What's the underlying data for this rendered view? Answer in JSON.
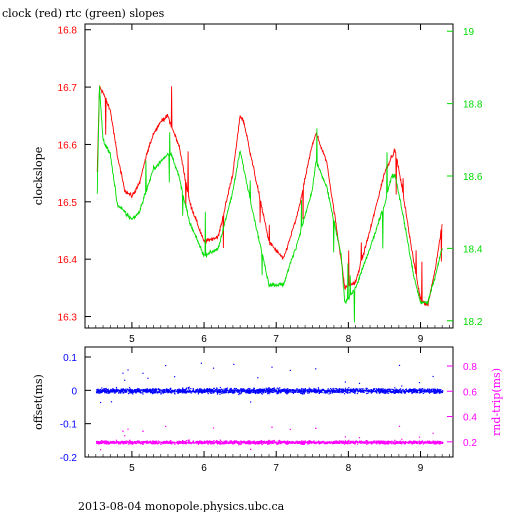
{
  "title": "clock (red) rtc (green) slopes",
  "footer": "2013-08-04 monopole.physics.ubc.ca",
  "colors": {
    "red": "#ff0000",
    "green": "#00dd00",
    "blue": "#0000ff",
    "magenta": "#ff00ff",
    "axis": "#000000"
  },
  "chart_data": [
    {
      "type": "line",
      "title": "clock (red) rtc (green) slopes",
      "ylabel": "clockslope",
      "xlim": [
        4.35,
        9.45
      ],
      "ylim": [
        16.28,
        16.81
      ],
      "y2lim": [
        18.18,
        19.02
      ],
      "x_ticks": [
        5,
        6,
        7,
        8,
        9
      ],
      "y_ticks": [
        16.3,
        16.4,
        16.5,
        16.6,
        16.7,
        16.8
      ],
      "y2_ticks": [
        18.2,
        18.4,
        18.6,
        18.8,
        19
      ],
      "series": [
        {
          "name": "clock",
          "color": "#ff0000",
          "axis": "left",
          "x": [
            4.52,
            4.55,
            4.6,
            4.7,
            4.8,
            4.9,
            5.0,
            5.1,
            5.2,
            5.3,
            5.4,
            5.5,
            5.55,
            5.65,
            5.8,
            6.0,
            6.2,
            6.4,
            6.5,
            6.55,
            6.7,
            6.9,
            7.1,
            7.3,
            7.5,
            7.55,
            7.7,
            7.9,
            7.95,
            8.1,
            8.3,
            8.5,
            8.6,
            8.65,
            8.75,
            8.9,
            9.0,
            9.1,
            9.2,
            9.3
          ],
          "values": [
            16.55,
            16.7,
            16.69,
            16.66,
            16.58,
            16.52,
            16.51,
            16.53,
            16.58,
            16.62,
            16.64,
            16.65,
            16.63,
            16.6,
            16.5,
            16.43,
            16.44,
            16.55,
            16.65,
            16.64,
            16.55,
            16.43,
            16.4,
            16.48,
            16.6,
            16.62,
            16.57,
            16.4,
            16.35,
            16.36,
            16.45,
            16.55,
            16.58,
            16.59,
            16.52,
            16.4,
            16.33,
            16.32,
            16.38,
            16.46
          ]
        },
        {
          "name": "rtc",
          "color": "#00dd00",
          "axis": "right",
          "x": [
            4.52,
            4.55,
            4.6,
            4.7,
            4.8,
            4.9,
            5.0,
            5.1,
            5.2,
            5.3,
            5.4,
            5.5,
            5.55,
            5.65,
            5.8,
            6.0,
            6.2,
            6.4,
            6.5,
            6.55,
            6.7,
            6.9,
            7.1,
            7.3,
            7.5,
            7.55,
            7.7,
            7.9,
            7.95,
            8.1,
            8.3,
            8.5,
            8.6,
            8.65,
            8.75,
            8.9,
            9.0,
            9.1,
            9.2,
            9.3
          ],
          "values": [
            18.55,
            18.85,
            18.7,
            18.66,
            18.52,
            18.5,
            18.48,
            18.5,
            18.56,
            18.62,
            18.64,
            18.66,
            18.66,
            18.6,
            18.47,
            18.38,
            18.4,
            18.56,
            18.67,
            18.62,
            18.48,
            18.3,
            18.3,
            18.42,
            18.56,
            18.64,
            18.57,
            18.38,
            18.25,
            18.29,
            18.4,
            18.52,
            18.6,
            18.6,
            18.5,
            18.33,
            18.25,
            18.25,
            18.32,
            18.4
          ]
        }
      ]
    },
    {
      "type": "scatter",
      "ylabel": "offset(ms)",
      "y2label": "rnd-trip(ms)",
      "xlim": [
        4.35,
        9.45
      ],
      "ylim": [
        -0.2,
        0.13
      ],
      "y2lim": [
        0.08,
        0.95
      ],
      "x_ticks": [
        5,
        6,
        7,
        8,
        9
      ],
      "y_ticks": [
        0.1,
        0,
        -0.1,
        -0.2
      ],
      "y2_ticks": [
        0.8,
        0.6,
        0.4,
        0.2
      ],
      "series": [
        {
          "name": "offset",
          "color": "#0000ff",
          "axis": "left",
          "x_range": [
            4.5,
            9.3
          ],
          "center": 0.0,
          "spread": 0.012
        },
        {
          "name": "round-trip",
          "color": "#ff00ff",
          "axis": "right",
          "x_range": [
            4.5,
            9.3
          ],
          "center": 0.2,
          "spread": 0.02
        }
      ]
    }
  ]
}
